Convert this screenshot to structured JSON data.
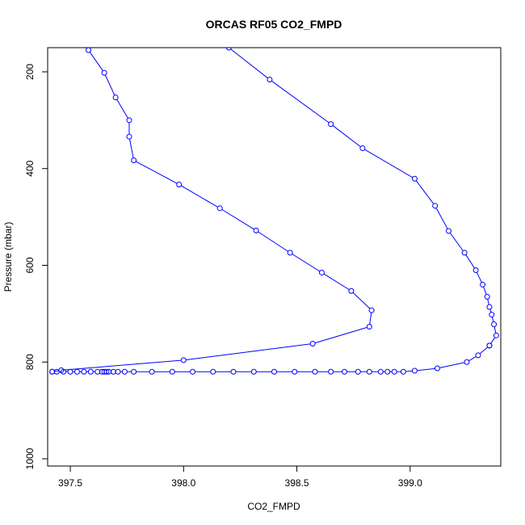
{
  "chart_data": {
    "type": "line",
    "title": "ORCAS RF05 CO2_FMPD",
    "xlabel": "CO2_FMPD",
    "ylabel": "Pressure (mbar)",
    "xlim": [
      397.4,
      399.4
    ],
    "ylim": [
      1015,
      150
    ],
    "y_reversed": true,
    "x_ticks": [
      397.5,
      398.0,
      398.5,
      399.0
    ],
    "x_tick_labels": [
      "397.5",
      "398.0",
      "398.5",
      "399.0"
    ],
    "y_ticks": [
      200,
      400,
      600,
      800,
      1000
    ],
    "y_tick_labels": [
      "200",
      "400",
      "600",
      "800",
      "1000"
    ],
    "grid": false,
    "series_color": "#0000ff",
    "marker": "open-circle",
    "series": [
      {
        "x": [
          399.35,
          399.3,
          399.25,
          399.12,
          399.02,
          398.97,
          398.93,
          398.9,
          398.87,
          398.82,
          398.77,
          398.71,
          398.65,
          398.58,
          398.49,
          398.4,
          398.31,
          398.22,
          398.13,
          398.04,
          397.95,
          397.86,
          397.78,
          397.74,
          397.71,
          397.69,
          397.67,
          397.66,
          397.65,
          397.64,
          397.62,
          397.59,
          397.56,
          397.53,
          397.5,
          397.47,
          397.44,
          397.42
        ],
        "y": [
          766,
          786,
          800,
          813,
          818,
          820,
          820,
          820,
          820,
          820,
          820,
          820,
          820,
          820,
          820,
          820,
          820,
          820,
          820,
          820,
          820,
          820,
          820,
          820,
          820,
          820,
          820,
          820,
          820,
          820,
          820,
          820,
          820,
          820,
          820,
          820,
          820,
          820
        ]
      },
      {
        "x": [
          397.42,
          397.46,
          398.0,
          398.57,
          398.82,
          398.83,
          398.74,
          398.61,
          398.47,
          398.32,
          398.16,
          397.98,
          397.78,
          397.76,
          397.76,
          397.7,
          397.65,
          397.58
        ],
        "y": [
          820,
          817,
          796,
          762,
          727,
          693,
          653,
          615,
          574,
          528,
          482,
          433,
          383,
          334,
          300,
          253,
          202,
          155
        ]
      },
      {
        "x": [
          399.35,
          399.38,
          399.37,
          399.36,
          399.35,
          399.34,
          399.32,
          399.29,
          399.24,
          399.17,
          399.11,
          399.02,
          398.79,
          398.65,
          398.38,
          398.2
        ],
        "y": [
          766,
          745,
          722,
          702,
          686,
          665,
          640,
          610,
          574,
          529,
          477,
          421,
          358,
          308,
          216,
          150
        ]
      }
    ]
  }
}
